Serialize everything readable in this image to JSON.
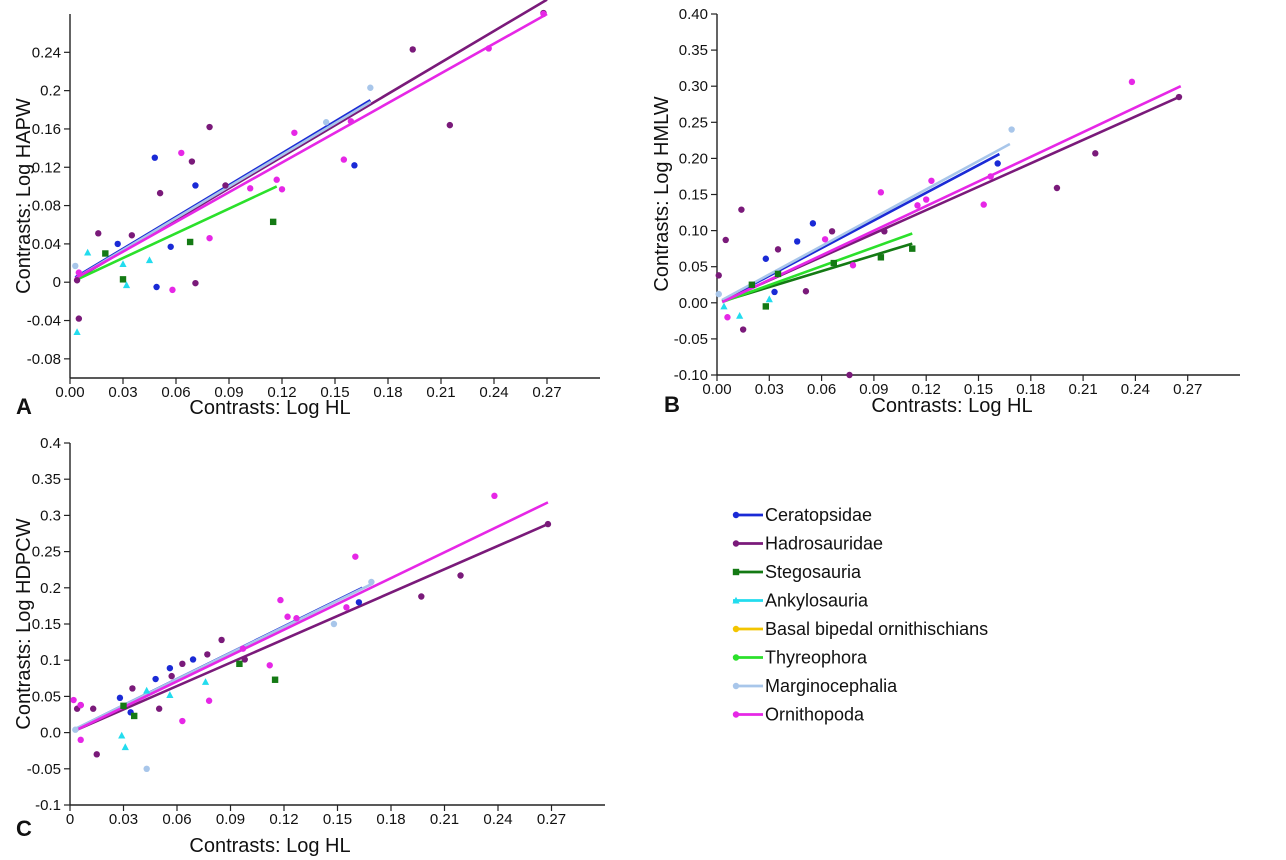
{
  "legend": [
    {
      "name": "Ceratopsidae",
      "color": "#1a2ad6",
      "marker": "circle"
    },
    {
      "name": "Hadrosauridae",
      "color": "#7a1a7a",
      "marker": "circle"
    },
    {
      "name": "Stegosauria",
      "color": "#147a14",
      "marker": "square"
    },
    {
      "name": "Ankylosauria",
      "color": "#22dcee",
      "marker": "triangle"
    },
    {
      "name": "Basal bipedal ornithischians",
      "color": "#f3c500",
      "marker": "circle"
    },
    {
      "name": "Thyreophora",
      "color": "#2be02b",
      "marker": "circle"
    },
    {
      "name": "Marginocephalia",
      "color": "#a8c6ea",
      "marker": "circle"
    },
    {
      "name": "Ornithopoda",
      "color": "#e627e6",
      "marker": "circle"
    }
  ],
  "chart_data": [
    {
      "panel": "A",
      "type": "scatter",
      "xlabel": "Contrasts: Log HL",
      "ylabel": "Contrasts: Log HAPW",
      "xlim": [
        0,
        0.3
      ],
      "ylim": [
        -0.1,
        0.28
      ],
      "xticks": [
        "0.00",
        "0.03",
        "0.06",
        "0.09",
        "0.12",
        "0.15",
        "0.18",
        "0.21",
        "0.24",
        "0.27"
      ],
      "xtick_values": [
        0,
        0.03,
        0.06,
        0.09,
        0.12,
        0.15,
        0.18,
        0.21,
        0.24,
        0.27
      ],
      "yticks": [
        "-0.08",
        "-0.04",
        "0",
        "0.04",
        "0.08",
        "0.12",
        "0.16",
        "0.2",
        "0.24"
      ],
      "ytick_values": [
        -0.08,
        -0.04,
        0,
        0.04,
        0.08,
        0.12,
        0.16,
        0.2,
        0.24
      ],
      "series": [
        {
          "name": "Ceratopsidae",
          "points": [
            [
              0.027,
              0.04
            ],
            [
              0.048,
              0.13
            ],
            [
              0.049,
              -0.005
            ],
            [
              0.057,
              0.037
            ],
            [
              0.071,
              0.101
            ],
            [
              0.161,
              0.122
            ]
          ],
          "line": [
            [
              0.003,
              0.005
            ],
            [
              0.17,
              0.19
            ]
          ]
        },
        {
          "name": "Hadrosauridae",
          "points": [
            [
              0.004,
              0.002
            ],
            [
              0.005,
              -0.038
            ],
            [
              0.016,
              0.051
            ],
            [
              0.035,
              0.049
            ],
            [
              0.051,
              0.093
            ],
            [
              0.069,
              0.126
            ],
            [
              0.071,
              -0.001
            ],
            [
              0.079,
              0.162
            ],
            [
              0.088,
              0.101
            ],
            [
              0.194,
              0.243
            ],
            [
              0.215,
              0.164
            ],
            [
              0.268,
              0.281
            ]
          ],
          "line": [
            [
              0.003,
              0.003
            ],
            [
              0.27,
              0.295
            ]
          ]
        },
        {
          "name": "Stegosauria",
          "points": [
            [
              0.02,
              0.03
            ],
            [
              0.03,
              0.003
            ],
            [
              0.068,
              0.042
            ],
            [
              0.115,
              0.063
            ]
          ],
          "line": []
        },
        {
          "name": "Ankylosauria",
          "points": [
            [
              0.004,
              -0.052
            ],
            [
              0.01,
              0.031
            ],
            [
              0.03,
              0.019
            ],
            [
              0.032,
              -0.003
            ],
            [
              0.045,
              0.023
            ]
          ],
          "line": []
        },
        {
          "name": "Thyreophora",
          "points": [],
          "line": [
            [
              0.003,
              0.002
            ],
            [
              0.117,
              0.1
            ]
          ]
        },
        {
          "name": "Marginocephalia",
          "points": [
            [
              0.003,
              0.017
            ],
            [
              0.145,
              0.167
            ],
            [
              0.17,
              0.203
            ]
          ],
          "line": [
            [
              0.003,
              0.004
            ],
            [
              0.17,
              0.188
            ]
          ]
        },
        {
          "name": "Ornithopoda",
          "points": [
            [
              0.005,
              0.01
            ],
            [
              0.058,
              -0.008
            ],
            [
              0.063,
              0.135
            ],
            [
              0.079,
              0.046
            ],
            [
              0.102,
              0.098
            ],
            [
              0.117,
              0.107
            ],
            [
              0.12,
              0.097
            ],
            [
              0.127,
              0.156
            ],
            [
              0.155,
              0.128
            ],
            [
              0.159,
              0.168
            ],
            [
              0.237,
              0.244
            ],
            [
              0.268,
              0.28
            ]
          ],
          "line": [
            [
              0.003,
              0.004
            ],
            [
              0.27,
              0.28
            ]
          ]
        }
      ]
    },
    {
      "panel": "B",
      "type": "scatter",
      "xlabel": "Contrasts: Log HL",
      "ylabel": "Contrasts: Log HMLW",
      "xlim": [
        0,
        0.3
      ],
      "ylim": [
        -0.1,
        0.4
      ],
      "xticks": [
        "0.00",
        "0.03",
        "0.06",
        "0.09",
        "0.12",
        "0.15",
        "0.18",
        "0.21",
        "0.24",
        "0.27"
      ],
      "xtick_values": [
        0,
        0.03,
        0.06,
        0.09,
        0.12,
        0.15,
        0.18,
        0.21,
        0.24,
        0.27
      ],
      "yticks": [
        "-0.10",
        "-0.05",
        "0.00",
        "0.05",
        "0.10",
        "0.15",
        "0.20",
        "0.25",
        "0.30",
        "0.35",
        "0.40"
      ],
      "ytick_values": [
        -0.1,
        -0.05,
        0,
        0.05,
        0.1,
        0.15,
        0.2,
        0.25,
        0.3,
        0.35,
        0.4
      ],
      "series": [
        {
          "name": "Ceratopsidae",
          "points": [
            [
              0.028,
              0.061
            ],
            [
              0.033,
              0.015
            ],
            [
              0.046,
              0.085
            ],
            [
              0.055,
              0.11
            ],
            [
              0.161,
              0.193
            ]
          ],
          "line": [
            [
              0.003,
              0.003
            ],
            [
              0.162,
              0.206
            ]
          ]
        },
        {
          "name": "Hadrosauridae",
          "points": [
            [
              0.001,
              0.038
            ],
            [
              0.005,
              0.087
            ],
            [
              0.014,
              0.129
            ],
            [
              0.015,
              -0.037
            ],
            [
              0.035,
              0.074
            ],
            [
              0.051,
              0.016
            ],
            [
              0.066,
              0.099
            ],
            [
              0.076,
              -0.1
            ],
            [
              0.096,
              0.099
            ],
            [
              0.195,
              0.159
            ],
            [
              0.217,
              0.207
            ],
            [
              0.265,
              0.285
            ]
          ],
          "line": [
            [
              0.003,
              0.002
            ],
            [
              0.265,
              0.285
            ]
          ]
        },
        {
          "name": "Stegosauria",
          "points": [
            [
              0.02,
              0.025
            ],
            [
              0.028,
              -0.005
            ],
            [
              0.035,
              0.04
            ],
            [
              0.067,
              0.055
            ],
            [
              0.094,
              0.063
            ],
            [
              0.112,
              0.075
            ]
          ],
          "line": [
            [
              0.003,
              0.002
            ],
            [
              0.112,
              0.082
            ]
          ]
        },
        {
          "name": "Ankylosauria",
          "points": [
            [
              0.004,
              -0.005
            ],
            [
              0.013,
              -0.018
            ],
            [
              0.03,
              0.005
            ]
          ],
          "line": []
        },
        {
          "name": "Thyreophora",
          "points": [],
          "line": [
            [
              0.003,
              0.001
            ],
            [
              0.112,
              0.096
            ]
          ]
        },
        {
          "name": "Marginocephalia",
          "points": [
            [
              0.001,
              0.012
            ],
            [
              0.169,
              0.24
            ]
          ],
          "line": [
            [
              0.003,
              0.004
            ],
            [
              0.168,
              0.22
            ]
          ]
        },
        {
          "name": "Ornithopoda",
          "points": [
            [
              0.006,
              -0.02
            ],
            [
              0.062,
              0.088
            ],
            [
              0.078,
              0.052
            ],
            [
              0.094,
              0.153
            ],
            [
              0.115,
              0.135
            ],
            [
              0.12,
              0.143
            ],
            [
              0.123,
              0.169
            ],
            [
              0.153,
              0.136
            ],
            [
              0.157,
              0.175
            ],
            [
              0.238,
              0.306
            ]
          ],
          "line": [
            [
              0.003,
              0.001
            ],
            [
              0.266,
              0.3
            ]
          ]
        }
      ]
    },
    {
      "panel": "C",
      "type": "scatter",
      "xlabel": "Contrasts: Log HL",
      "ylabel": "Contrasts: Log HDPCW",
      "xlim": [
        0,
        0.3
      ],
      "ylim": [
        -0.1,
        0.4
      ],
      "xticks": [
        "0",
        "0.03",
        "0.06",
        "0.09",
        "0.12",
        "0.15",
        "0.18",
        "0.21",
        "0.24",
        "0.27"
      ],
      "xtick_values": [
        0,
        0.03,
        0.06,
        0.09,
        0.12,
        0.15,
        0.18,
        0.21,
        0.24,
        0.27
      ],
      "yticks": [
        "-0.1",
        "-0.05",
        "0.0",
        "0.05",
        "0.1",
        "0.15",
        "0.2",
        "0.25",
        "0.3",
        "0.35",
        "0.4"
      ],
      "ytick_values": [
        -0.1,
        -0.05,
        0,
        0.05,
        0.1,
        0.15,
        0.2,
        0.25,
        0.3,
        0.35,
        0.4
      ],
      "series": [
        {
          "name": "Ceratopsidae",
          "points": [
            [
              0.028,
              0.048
            ],
            [
              0.034,
              0.028
            ],
            [
              0.048,
              0.074
            ],
            [
              0.056,
              0.089
            ],
            [
              0.069,
              0.101
            ],
            [
              0.162,
              0.18
            ]
          ],
          "line": [
            [
              0.003,
              0.005
            ],
            [
              0.164,
              0.2
            ]
          ]
        },
        {
          "name": "Hadrosauridae",
          "points": [
            [
              0.004,
              0.033
            ],
            [
              0.006,
              0.038
            ],
            [
              0.013,
              0.033
            ],
            [
              0.015,
              -0.03
            ],
            [
              0.035,
              0.061
            ],
            [
              0.05,
              0.033
            ],
            [
              0.057,
              0.078
            ],
            [
              0.063,
              0.095
            ],
            [
              0.077,
              0.108
            ],
            [
              0.085,
              0.128
            ],
            [
              0.098,
              0.101
            ],
            [
              0.197,
              0.188
            ],
            [
              0.219,
              0.217
            ],
            [
              0.268,
              0.288
            ]
          ],
          "line": [
            [
              0.003,
              0.003
            ],
            [
              0.268,
              0.288
            ]
          ]
        },
        {
          "name": "Stegosauria",
          "points": [
            [
              0.03,
              0.037
            ],
            [
              0.036,
              0.023
            ],
            [
              0.095,
              0.095
            ],
            [
              0.115,
              0.073
            ]
          ],
          "line": []
        },
        {
          "name": "Ankylosauria",
          "points": [
            [
              0.029,
              -0.004
            ],
            [
              0.031,
              -0.02
            ],
            [
              0.043,
              0.058
            ],
            [
              0.056,
              0.052
            ],
            [
              0.076,
              0.07
            ]
          ],
          "line": []
        },
        {
          "name": "Thyreophora",
          "points": [],
          "line": []
        },
        {
          "name": "Marginocephalia",
          "points": [
            [
              0.003,
              0.004
            ],
            [
              0.043,
              -0.05
            ],
            [
              0.148,
              0.15
            ],
            [
              0.169,
              0.208
            ]
          ],
          "line": [
            [
              0.003,
              0.005
            ],
            [
              0.169,
              0.205
            ]
          ]
        },
        {
          "name": "Ornithopoda",
          "points": [
            [
              0.002,
              0.045
            ],
            [
              0.006,
              0.038
            ],
            [
              0.006,
              -0.01
            ],
            [
              0.063,
              0.016
            ],
            [
              0.078,
              0.044
            ],
            [
              0.097,
              0.116
            ],
            [
              0.112,
              0.093
            ],
            [
              0.118,
              0.183
            ],
            [
              0.122,
              0.16
            ],
            [
              0.127,
              0.158
            ],
            [
              0.155,
              0.173
            ],
            [
              0.16,
              0.243
            ],
            [
              0.238,
              0.327
            ]
          ],
          "line": [
            [
              0.003,
              0.003
            ],
            [
              0.268,
              0.318
            ]
          ]
        }
      ]
    }
  ]
}
